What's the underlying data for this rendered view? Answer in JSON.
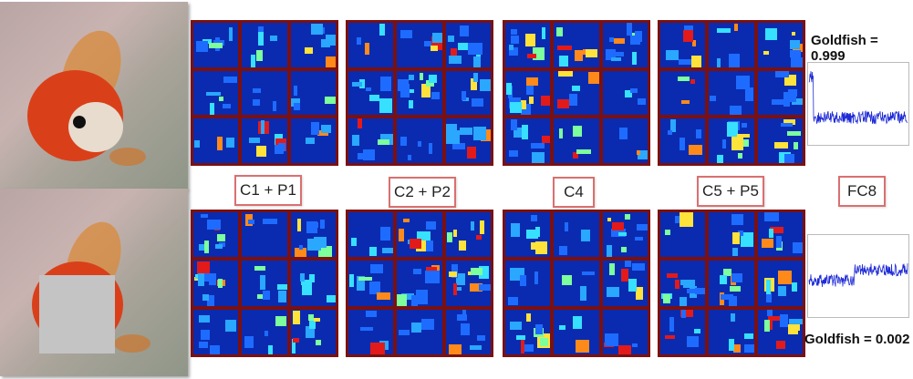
{
  "layers": [
    {
      "key": "c1p1",
      "label": "C1 + P1"
    },
    {
      "key": "c2p2",
      "label": "C2 + P2"
    },
    {
      "key": "c4",
      "label": "C4"
    },
    {
      "key": "c5p5",
      "label": "C5 + P5"
    },
    {
      "key": "fc8",
      "label": "FC8"
    }
  ],
  "predictions": {
    "top": "Goldfish = 0.999",
    "bottom": "Goldfish = 0.002"
  },
  "colors": {
    "grid_border": "#7b1010",
    "map_background": "#0a2bb0",
    "label_border": "#d97070",
    "fc8_line": "#1f2bd6"
  }
}
